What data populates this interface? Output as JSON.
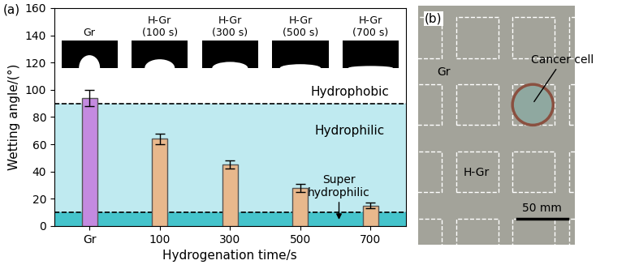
{
  "chart_data": {
    "type": "bar",
    "panel_label": "(a)",
    "xlabel": "Hydrogenation time/s",
    "ylabel": "Wetting angle/(°)",
    "categories": [
      "Gr",
      "100",
      "300",
      "500",
      "700"
    ],
    "values": [
      94,
      64,
      45,
      28,
      15
    ],
    "errors": [
      6,
      4,
      3,
      3,
      2
    ],
    "colors": [
      "#c48ae0",
      "#e8b88c",
      "#e8b88c",
      "#e8b88c",
      "#e8b88c"
    ],
    "ylim": [
      0,
      160
    ],
    "yticks": [
      0,
      20,
      40,
      60,
      80,
      100,
      120,
      140,
      160
    ],
    "thresholds": [
      90,
      10
    ],
    "annotations": [
      "Hydrophobic",
      "Hydrophilic",
      "Super\nhydrophilic"
    ],
    "inset_labels": [
      "Gr",
      "H-Gr\n(100 s)",
      "H-Gr\n(300 s)",
      "H-Gr\n(500 s)",
      "H-Gr\n(700 s)"
    ]
  },
  "panel_b": {
    "panel_label": "(b)",
    "region_labels": [
      "Gr",
      "H-Gr"
    ],
    "annotation": "Cancer cell",
    "scale_bar": "50 mm"
  }
}
